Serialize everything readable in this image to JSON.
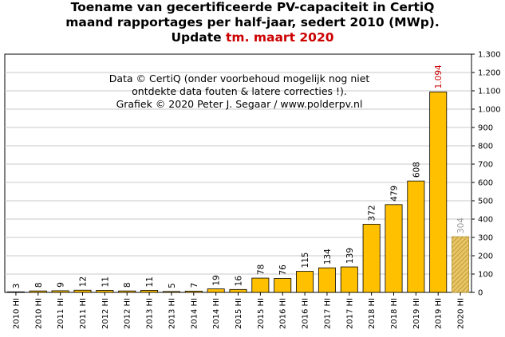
{
  "title": {
    "line1": "Toename van gecertificeerde PV-capaciteit in CertiQ",
    "line2": "maand rapportages per half-jaar, sedert 2010 (MWp).",
    "line3_prefix": "Update ",
    "line3_highlight": "tm. maart 2020"
  },
  "annotation": {
    "line1": "Data © CertiQ (onder voorbehoud mogelijk nog niet",
    "line2": "ontdekte data fouten & latere correcties !).",
    "line3": "Grafiek  © 2020 Peter J. Segaar / www.polderpv.nl"
  },
  "colors": {
    "bar": "#FFC000",
    "partial_bar": "#D4B045",
    "highlight_text": "#cc0000",
    "partial_text": "#999999"
  },
  "chart_data": {
    "type": "bar",
    "categories": [
      "2010 HI",
      "2010 HI",
      "2011 HI",
      "2011 HI",
      "2012 HI",
      "2012 HI",
      "2013 HI",
      "2013 HI",
      "2014 HI",
      "2014 HI",
      "2015 HI",
      "2015 HI",
      "2016 HI",
      "2016 HI",
      "2017 HI",
      "2017 HI",
      "2018 HI",
      "2018 HI",
      "2019 HI",
      "2019 HI",
      "2020 HI"
    ],
    "values": [
      3,
      8,
      9,
      12,
      11,
      8,
      11,
      5,
      7,
      19,
      16,
      78,
      76,
      115,
      134,
      139,
      372,
      479,
      608,
      1094,
      304
    ],
    "value_labels": [
      "3",
      "8",
      "9",
      "12",
      "11",
      "8",
      "11",
      "5",
      "7",
      "19",
      "16",
      "78",
      "76",
      "115",
      "134",
      "139",
      "372",
      "479",
      "608",
      "1.094",
      "304"
    ],
    "highlight_index": 19,
    "partial_index": 20,
    "ylim": [
      0,
      1300
    ],
    "y_ticks": [
      0,
      100,
      200,
      300,
      400,
      500,
      600,
      700,
      800,
      900,
      1000,
      1100,
      1200,
      1300
    ],
    "y_tick_labels": [
      "0",
      "100",
      "200",
      "300",
      "400",
      "500",
      "600",
      "700",
      "800",
      "900",
      "1.000",
      "1.100",
      "1.200",
      "1.300"
    ],
    "y_axis_side": "right",
    "grid": true
  }
}
